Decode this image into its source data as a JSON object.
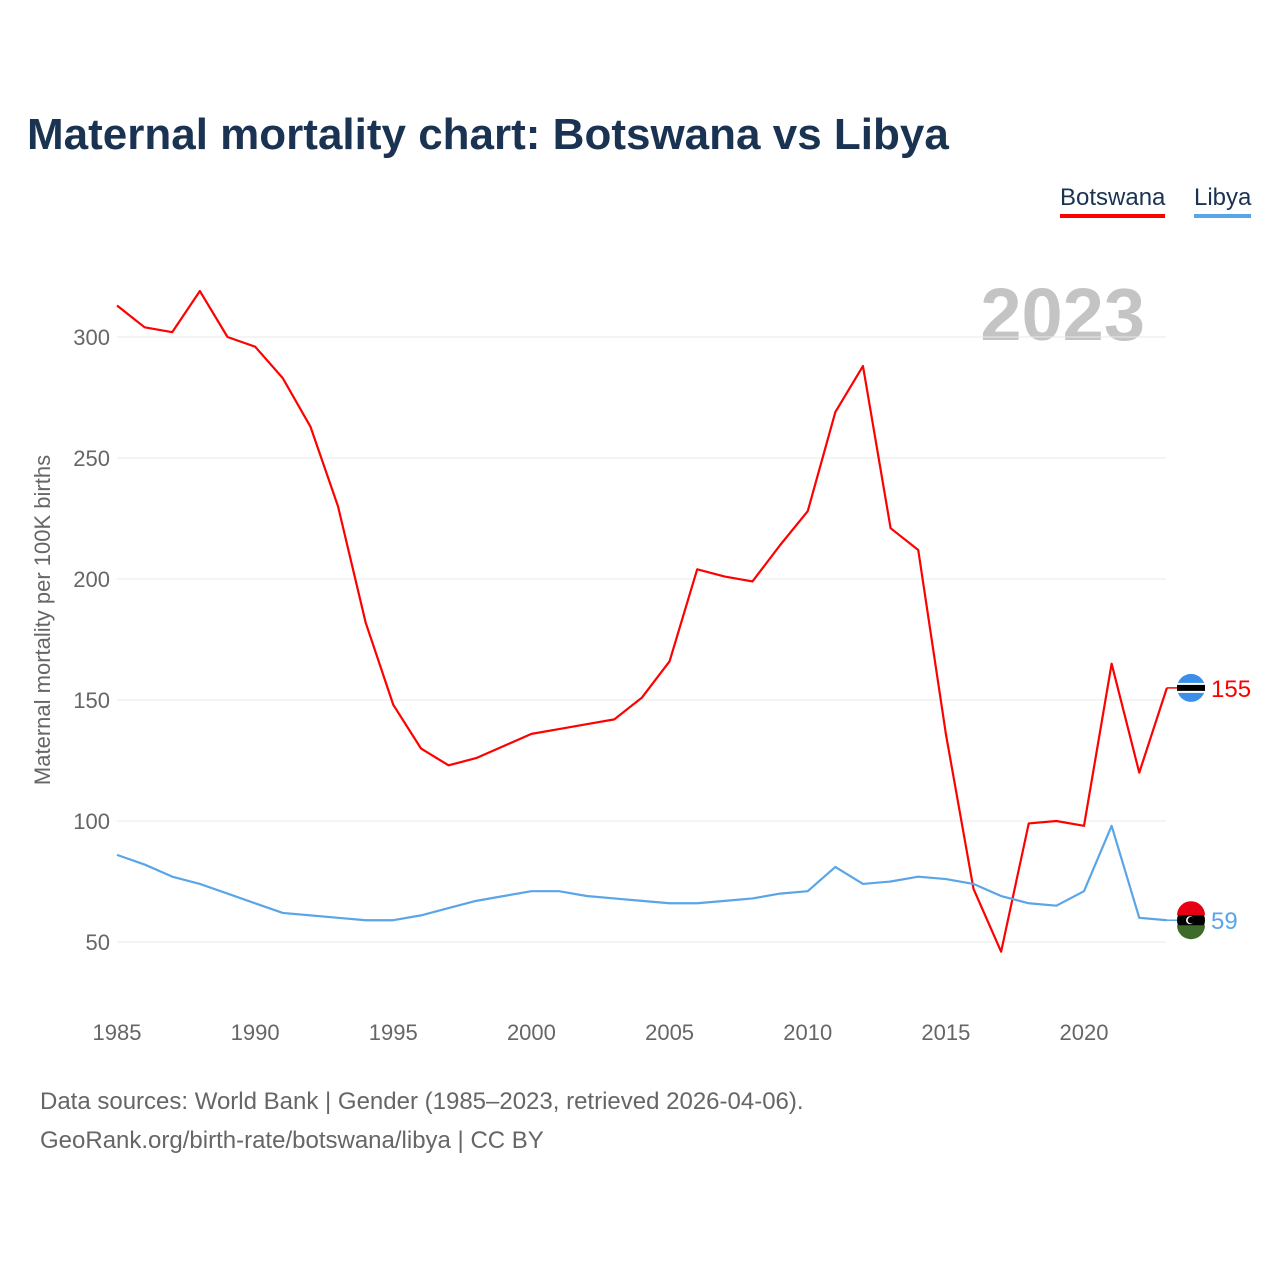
{
  "title": "Maternal mortality chart: Botswana vs Libya",
  "year_badge": "2023",
  "sources": {
    "line1": "Data sources: World Bank | Gender (1985–2023, retrieved 2026-04-06).",
    "line2": "GeoRank.org/birth-rate/botswana/libya | CC BY"
  },
  "chart_data": {
    "type": "line",
    "title": "Maternal mortality chart: Botswana vs Libya",
    "xlabel": "",
    "ylabel": "Maternal mortality per 100K births",
    "xlim": [
      1985,
      2023
    ],
    "ylim": [
      30,
      330
    ],
    "xticks": [
      "1985",
      "1990",
      "1995",
      "2000",
      "2005",
      "2010",
      "2015",
      "2020"
    ],
    "yticks": [
      "50",
      "100",
      "150",
      "200",
      "250",
      "300"
    ],
    "grid": true,
    "legend_placement": "top-right",
    "x": [
      1985,
      1986,
      1987,
      1988,
      1989,
      1990,
      1991,
      1992,
      1993,
      1994,
      1995,
      1996,
      1997,
      1998,
      1999,
      2000,
      2001,
      2002,
      2003,
      2004,
      2005,
      2006,
      2007,
      2008,
      2009,
      2010,
      2011,
      2012,
      2013,
      2014,
      2015,
      2016,
      2017,
      2018,
      2019,
      2020,
      2021,
      2022,
      2023
    ],
    "series": [
      {
        "name": "Botswana",
        "color": "#ff0000",
        "end_label": "155",
        "values": [
          313,
          304,
          302,
          319,
          300,
          296,
          283,
          263,
          230,
          182,
          148,
          130,
          123,
          126,
          131,
          136,
          138,
          140,
          142,
          151,
          166,
          204,
          201,
          199,
          214,
          228,
          269,
          288,
          221,
          212,
          136,
          72,
          46,
          99,
          100,
          98,
          165,
          120,
          155
        ]
      },
      {
        "name": "Libya",
        "color": "#5aa5e8",
        "end_label": "59",
        "values": [
          86,
          82,
          77,
          74,
          70,
          66,
          62,
          61,
          60,
          59,
          59,
          61,
          64,
          67,
          69,
          71,
          71,
          69,
          68,
          67,
          66,
          66,
          67,
          68,
          70,
          71,
          81,
          74,
          75,
          77,
          76,
          74,
          69,
          66,
          65,
          71,
          98,
          60,
          59
        ]
      }
    ]
  }
}
